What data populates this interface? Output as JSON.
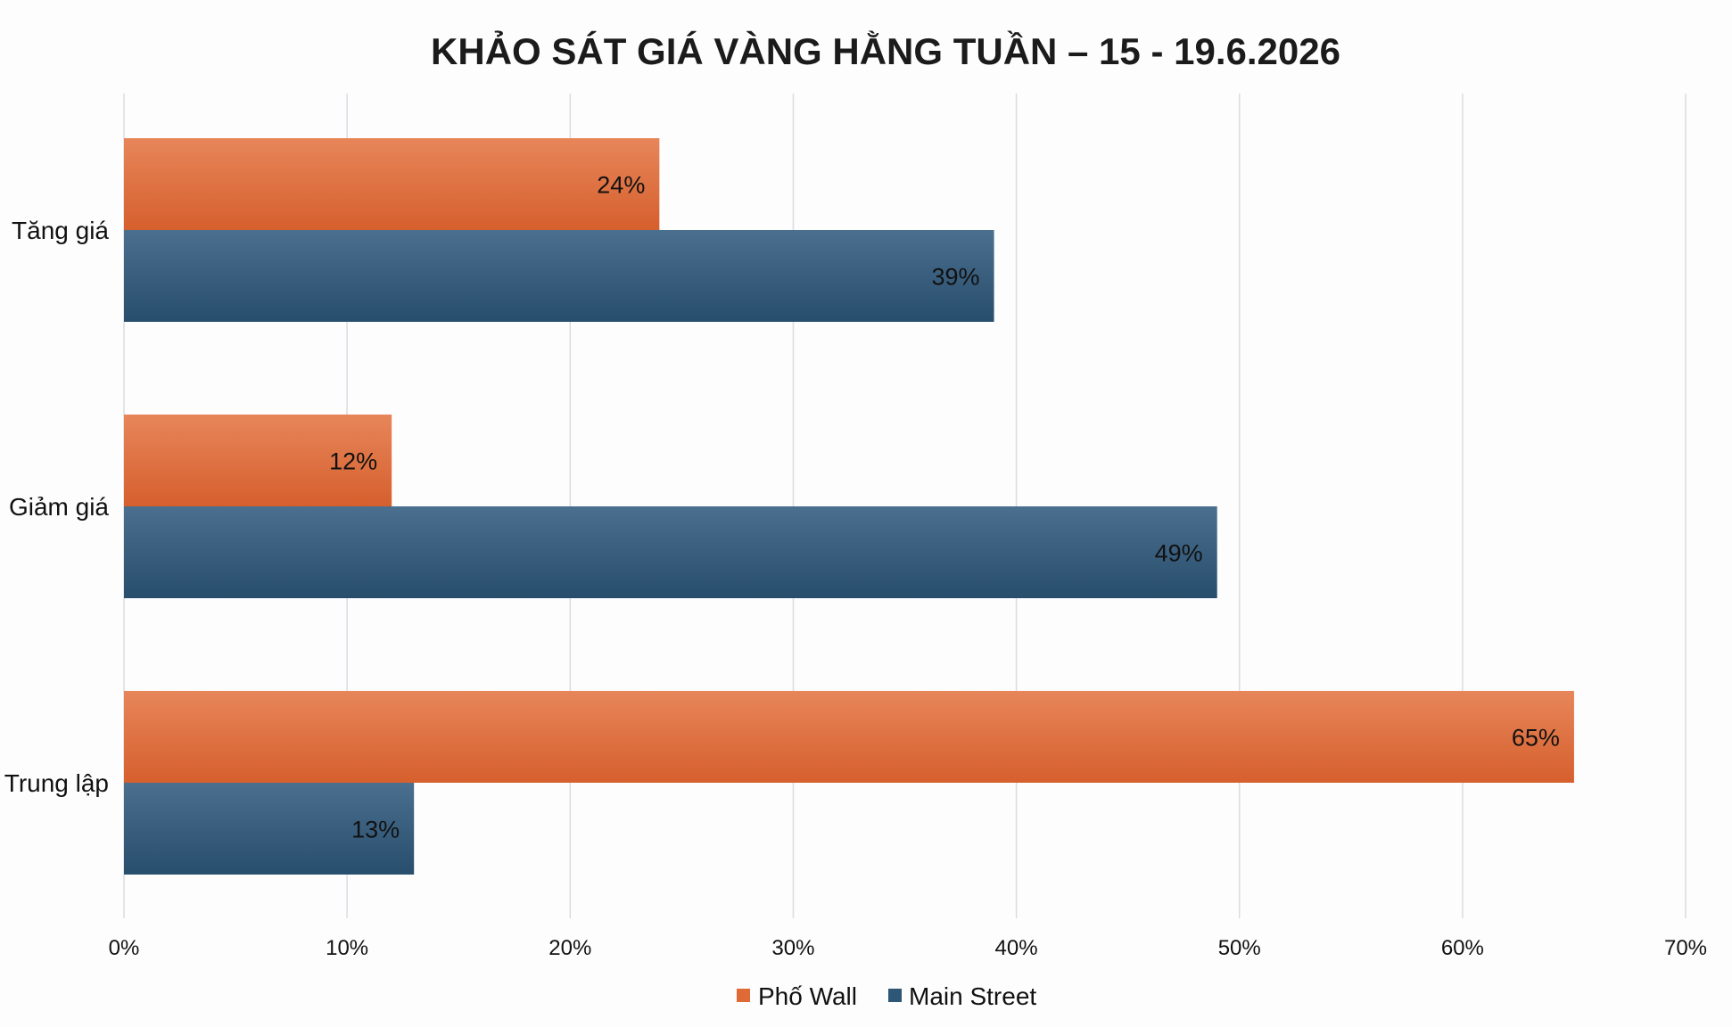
{
  "chart_data": {
    "type": "bar",
    "orientation": "horizontal",
    "title": "KHẢO SÁT GIÁ VÀNG HẰNG TUẦN – 15 - 19.6.2026",
    "categories": [
      "Tăng giá",
      "Giảm giá",
      "Trung lập"
    ],
    "series": [
      {
        "name": "Phố Wall",
        "color": "#e06a35",
        "values": [
          24,
          12,
          65
        ],
        "labels": [
          "24%",
          "12%",
          "65%"
        ]
      },
      {
        "name": "Main Street",
        "color": "#2e5676",
        "values": [
          39,
          49,
          13
        ],
        "labels": [
          "39%",
          "49%",
          "13%"
        ]
      }
    ],
    "xlim": [
      0,
      70
    ],
    "x_ticks": [
      "0%",
      "10%",
      "20%",
      "30%",
      "40%",
      "50%",
      "60%",
      "70%"
    ],
    "grid": true,
    "legend_position": "bottom-center"
  }
}
